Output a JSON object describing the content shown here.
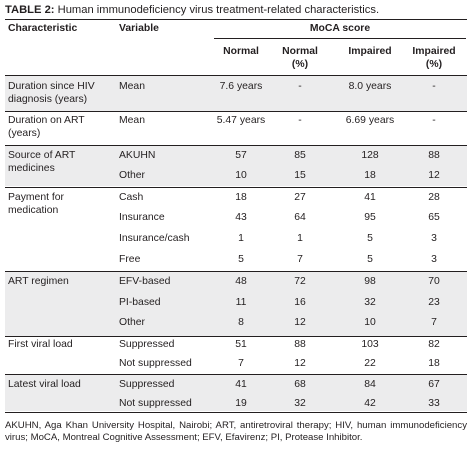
{
  "caption": {
    "label": "TABLE 2:",
    "text": "Human immunodeficiency virus treatment-related characteristics."
  },
  "headers": {
    "characteristic": "Characteristic",
    "variable": "Variable",
    "group": "MoCA score",
    "cols": [
      "Normal",
      "Normal (%)",
      "Impaired",
      "Impaired (%)"
    ]
  },
  "groups": [
    {
      "label": "Duration since HIV diagnosis (years)",
      "rows": [
        {
          "variable": "Mean",
          "values": [
            "7.6 years",
            "-",
            "8.0 years",
            "-"
          ]
        }
      ]
    },
    {
      "label": "Duration on ART (years)",
      "rows": [
        {
          "variable": "Mean",
          "values": [
            "5.47 years",
            "-",
            "6.69 years",
            "-"
          ]
        }
      ]
    },
    {
      "label": "Source of ART medicines",
      "rows": [
        {
          "variable": "AKUHN",
          "values": [
            "57",
            "85",
            "128",
            "88"
          ]
        },
        {
          "variable": "Other",
          "values": [
            "10",
            "15",
            "18",
            "12"
          ]
        }
      ]
    },
    {
      "label": "Payment for medication",
      "rows": [
        {
          "variable": "Cash",
          "values": [
            "18",
            "27",
            "41",
            "28"
          ]
        },
        {
          "variable": "Insurance",
          "values": [
            "43",
            "64",
            "95",
            "65"
          ]
        },
        {
          "variable": "Insurance/cash",
          "values": [
            "1",
            "1",
            "5",
            "3"
          ]
        },
        {
          "variable": "Free",
          "values": [
            "5",
            "7",
            "5",
            "3"
          ]
        }
      ]
    },
    {
      "label": "ART regimen",
      "rows": [
        {
          "variable": "EFV-based",
          "values": [
            "48",
            "72",
            "98",
            "70"
          ]
        },
        {
          "variable": "PI-based",
          "values": [
            "11",
            "16",
            "32",
            "23"
          ]
        },
        {
          "variable": "Other",
          "values": [
            "8",
            "12",
            "10",
            "7"
          ]
        }
      ]
    },
    {
      "label": "First viral load",
      "rows": [
        {
          "variable": "Suppressed",
          "values": [
            "51",
            "88",
            "103",
            "82"
          ]
        },
        {
          "variable": "Not suppressed",
          "values": [
            "7",
            "12",
            "22",
            "18"
          ]
        }
      ]
    },
    {
      "label": "Latest viral load",
      "rows": [
        {
          "variable": "Suppressed",
          "values": [
            "41",
            "68",
            "84",
            "67"
          ]
        },
        {
          "variable": "Not suppressed",
          "values": [
            "19",
            "32",
            "42",
            "33"
          ]
        }
      ]
    }
  ],
  "footnote": "AKUHN, Aga Khan University Hospital, Nairobi; ART, antiretroviral therapy; HIV, human immunodeficiency virus; MoCA, Montreal Cognitive Assessment; EFV, Efavirenz; PI, Protease Inhibitor."
}
